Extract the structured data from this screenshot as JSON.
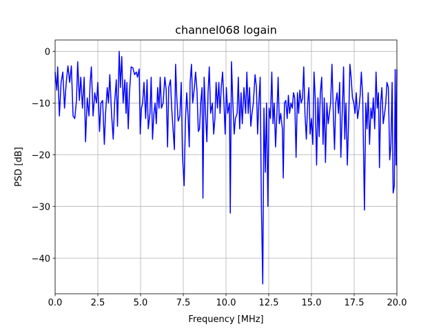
{
  "chart_data": {
    "type": "line",
    "title": "channel068 logain",
    "xlabel": "Frequency [MHz]",
    "ylabel": "PSD [dB]",
    "color": "#0000ff",
    "grid": true,
    "xlim": [
      0,
      20
    ],
    "ylim": [
      -46.9,
      2.2
    ],
    "xticks": [
      {
        "value": 0,
        "label": "0.0"
      },
      {
        "value": 2.5,
        "label": "2.5"
      },
      {
        "value": 5,
        "label": "5.0"
      },
      {
        "value": 7.5,
        "label": "7.5"
      },
      {
        "value": 10,
        "label": "10.0"
      },
      {
        "value": 12.5,
        "label": "12.5"
      },
      {
        "value": 15,
        "label": "15.0"
      },
      {
        "value": 17.5,
        "label": "17.5"
      },
      {
        "value": 20,
        "label": "20.0"
      }
    ],
    "yticks": [
      {
        "value": -40,
        "label": "−40"
      },
      {
        "value": -30,
        "label": "−30"
      },
      {
        "value": -20,
        "label": "−20"
      },
      {
        "value": -10,
        "label": "−10"
      },
      0
    ],
    "x": [
      0.0,
      0.1,
      0.15,
      0.25,
      0.35,
      0.45,
      0.55,
      0.65,
      0.75,
      0.85,
      0.95,
      1.05,
      1.15,
      1.25,
      1.32,
      1.42,
      1.5,
      1.6,
      1.7,
      1.78,
      1.88,
      1.98,
      2.05,
      2.12,
      2.22,
      2.32,
      2.42,
      2.5,
      2.6,
      2.68,
      2.78,
      2.88,
      2.95,
      3.05,
      3.12,
      3.2,
      3.3,
      3.4,
      3.48,
      3.58,
      3.65,
      3.75,
      3.82,
      3.9,
      3.98,
      4.08,
      4.15,
      4.2,
      4.28,
      4.35,
      4.45,
      4.55,
      4.65,
      4.75,
      4.82,
      4.92,
      4.98,
      5.05,
      5.12,
      5.2,
      5.3,
      5.38,
      5.45,
      5.55,
      5.62,
      5.7,
      5.78,
      5.85,
      5.92,
      6.0,
      6.08,
      6.15,
      6.22,
      6.32,
      6.42,
      6.5,
      6.58,
      6.65,
      6.75,
      6.82,
      6.9,
      6.98,
      7.05,
      7.12,
      7.2,
      7.3,
      7.38,
      7.45,
      7.55,
      7.62,
      7.7,
      7.78,
      7.85,
      7.9,
      7.98,
      8.05,
      8.15,
      8.22,
      8.3,
      8.38,
      8.45,
      8.52,
      8.6,
      8.65,
      8.72,
      8.8,
      8.88,
      8.95,
      9.02,
      9.1,
      9.2,
      9.28,
      9.35,
      9.42,
      9.5,
      9.58,
      9.65,
      9.72,
      9.8,
      9.88,
      9.95,
      10.02,
      10.1,
      10.2,
      10.25,
      10.32,
      10.4,
      10.48,
      10.55,
      10.65,
      10.72,
      10.8,
      10.88,
      10.95,
      11.05,
      11.15,
      11.22,
      11.3,
      11.38,
      11.45,
      11.52,
      11.6,
      11.7,
      11.78,
      11.85,
      11.92,
      12.0,
      12.07,
      12.15,
      12.22,
      12.3,
      12.37,
      12.45,
      12.52,
      12.6,
      12.68,
      12.75,
      12.82,
      12.9,
      12.98,
      13.05,
      13.12,
      13.2,
      13.3,
      13.35,
      13.42,
      13.5,
      13.58,
      13.65,
      13.72,
      13.8,
      13.88,
      13.95,
      14.02,
      14.1,
      14.18,
      14.25,
      14.32,
      14.4,
      14.48,
      14.55,
      14.62,
      14.7,
      14.78,
      14.85,
      14.92,
      15.0,
      15.08,
      15.15,
      15.22,
      15.3,
      15.38,
      15.45,
      15.52,
      15.6,
      15.68,
      15.75,
      15.82,
      15.9,
      15.98,
      16.05,
      16.12,
      16.2,
      16.28,
      16.35,
      16.42,
      16.5,
      16.58,
      16.65,
      16.72,
      16.8,
      16.88,
      16.95,
      17.02,
      17.1,
      17.18,
      17.25,
      17.32,
      17.4,
      17.48,
      17.55,
      17.62,
      17.7,
      17.78,
      17.85,
      17.92,
      18.0,
      18.1,
      18.18,
      18.25,
      18.32,
      18.4,
      18.48,
      18.55,
      18.62,
      18.7,
      18.78,
      18.85,
      18.92,
      18.98,
      19.05,
      19.12,
      19.2,
      19.28,
      19.35,
      19.42,
      19.5,
      19.58,
      19.65,
      19.72,
      19.78,
      19.85,
      19.9,
      19.95,
      20.0
    ],
    "values": [
      -4,
      -7.5,
      -3,
      -12.5,
      -6,
      -4,
      -11,
      -6,
      -2.8,
      -6,
      -2.8,
      -12.5,
      -13,
      -9.5,
      -2,
      -9.5,
      -5,
      -11,
      -5,
      -17.5,
      -9,
      -12.5,
      -6,
      -3,
      -12.5,
      -8,
      -10,
      -6,
      -15.5,
      -10,
      -9.5,
      -18,
      -12,
      -7,
      -10,
      -4.5,
      -12,
      -17,
      -10,
      -5.5,
      -14.5,
      0,
      -7,
      -1,
      -10,
      -5.5,
      -12,
      -6,
      -15,
      -8,
      -3,
      -3.2,
      -4.5,
      -4,
      -5,
      -3.4,
      -16,
      -11,
      -10,
      -6,
      -13,
      -5.5,
      -15,
      -12,
      -5,
      -17,
      -12,
      -10,
      -14,
      -7,
      -11,
      -5,
      -11,
      -10,
      -5,
      -7.5,
      -18.5,
      -7,
      -5.5,
      -11,
      -15,
      -19,
      -2.5,
      -9,
      -13.5,
      -12.5,
      -6,
      -20,
      -26,
      -14,
      -8,
      -12.5,
      -18.5,
      -6,
      -2.5,
      -10,
      -7,
      -4,
      -7.5,
      -15.5,
      -15,
      -10,
      -7,
      -28.4,
      -5,
      -12,
      -17.5,
      -8,
      -3,
      -12,
      -10,
      -16,
      -13,
      -6,
      -11,
      -6,
      -12,
      -7,
      -4,
      -10,
      -16,
      -7,
      -12,
      -10,
      -31.3,
      -2,
      -10,
      -16,
      -13,
      -12,
      -5,
      -15,
      -8,
      -14,
      -7,
      -12,
      -4,
      -12,
      -7,
      -14.5,
      -12,
      -10,
      -4.5,
      -7,
      -16,
      -10,
      -5,
      -30,
      -45,
      -11,
      -23.4,
      -10,
      -30,
      -11,
      -13,
      -4,
      -14,
      -10,
      -18.5,
      -12,
      -5,
      -14,
      -12,
      -15,
      -24.5,
      -10,
      -9.5,
      -13,
      -8.5,
      -12,
      -10,
      -11,
      -8,
      -9,
      -20.5,
      -8,
      -12,
      -7.5,
      -10,
      -9,
      -3,
      -12,
      -17,
      -10,
      -7,
      -16,
      -13,
      -18,
      -4,
      -9,
      -22,
      -9,
      -16.5,
      -8,
      -5,
      -18,
      -9,
      -21.5,
      -10,
      -14,
      -12,
      -10,
      -2.5,
      -12,
      -19,
      -10,
      -8,
      -12,
      -6,
      -20.5,
      -12,
      -3,
      -17,
      -10,
      -22,
      -13,
      -2.5,
      -5,
      -9,
      -10,
      -12,
      -8,
      -13,
      -11,
      -8.5,
      -4,
      -9,
      -30.7,
      -10,
      -15,
      -8,
      -18,
      -11,
      -13,
      -9,
      -15,
      -4,
      -11,
      -8,
      -22.5,
      -10,
      -7,
      -14,
      -12,
      -10,
      -6,
      -7,
      -21,
      -18,
      -6,
      -27.4,
      -26,
      -3.5,
      -22,
      -3.5
    ]
  }
}
